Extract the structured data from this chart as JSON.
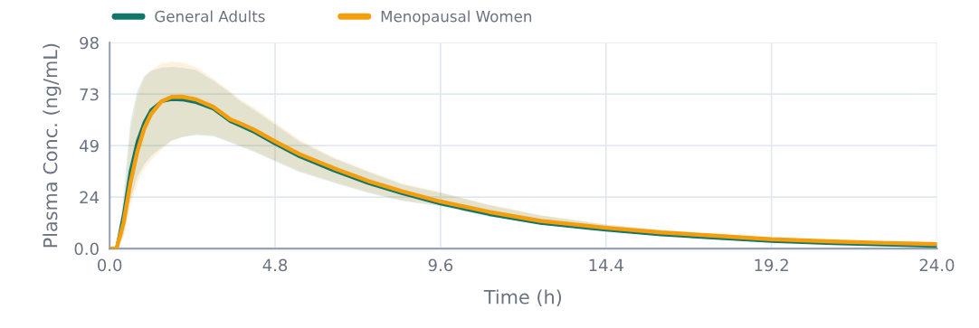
{
  "chart_data": {
    "type": "line",
    "xlabel": "Time (h)",
    "ylabel": "Plasma Conc. (ng/mL)",
    "x": [
      0,
      0.2,
      0.4,
      0.6,
      0.8,
      1.0,
      1.2,
      1.5,
      1.8,
      2.1,
      2.5,
      3,
      3.5,
      3.8,
      4.2,
      4.8,
      5.5,
      6.5,
      7.5,
      8.5,
      9.6,
      11,
      12.5,
      14.4,
      16,
      17.5,
      19.2,
      21,
      22.5,
      24
    ],
    "series": [
      {
        "name": "General Adults",
        "color": "#11756a",
        "values": [
          0,
          0,
          16,
          37,
          51,
          60,
          66,
          70,
          71,
          70.8,
          69.5,
          66.5,
          60.5,
          58.3,
          55.3,
          49.8,
          43.8,
          37.1,
          31.1,
          26.1,
          21.3,
          16.3,
          12.1,
          8.8,
          6.6,
          5.1,
          3.5,
          2.4,
          1.7,
          1.1
        ],
        "upper": [
          0,
          0,
          25,
          60,
          75,
          82,
          84.5,
          86,
          86.5,
          86,
          85,
          80,
          74,
          70,
          66,
          59,
          51,
          43,
          36.5,
          30.5,
          26.5,
          20.7,
          15.8,
          11.4,
          8.8,
          6.9,
          5.1,
          3.8,
          2.9,
          2.3
        ],
        "lower": [
          0,
          0,
          6,
          23,
          34,
          40,
          44,
          48,
          51.5,
          53,
          54,
          53.5,
          50.5,
          48.5,
          46,
          41.5,
          36.5,
          31.3,
          26.5,
          22.6,
          20.2,
          15.2,
          11.6,
          8.8,
          6.7,
          5.3,
          3.9,
          2.9,
          2.3,
          1.8
        ]
      },
      {
        "name": "Menopausal Women",
        "color": "#f59e0b",
        "values": [
          0,
          0,
          12,
          31,
          46,
          57,
          64,
          70,
          72.2,
          72.3,
          71,
          67.5,
          61.5,
          59.5,
          56.5,
          51,
          45,
          38.3,
          32.2,
          27.2,
          22.4,
          17.5,
          13.2,
          9.9,
          7.7,
          6.2,
          4.5,
          3.4,
          2.7,
          2.1
        ],
        "upper": [
          0,
          0,
          20,
          55,
          72,
          81,
          85,
          88,
          89,
          88.5,
          86.5,
          81,
          75,
          71,
          67,
          60,
          52,
          43.5,
          37,
          31,
          26.9,
          21,
          16,
          11.6,
          9,
          7,
          5.2,
          3.9,
          3,
          2.4
        ],
        "lower": [
          0,
          0,
          5,
          20,
          31,
          38,
          42,
          47,
          51,
          53,
          54.5,
          54,
          51,
          49,
          46.5,
          42,
          37,
          31.8,
          26.9,
          23,
          20.6,
          15.5,
          11.8,
          9,
          6.8,
          5.4,
          4,
          3,
          2.4,
          1.9
        ]
      }
    ],
    "xlim": [
      0,
      24
    ],
    "xticks": [
      {
        "value": 0,
        "label": "0.0"
      },
      4.8,
      9.6,
      14.4,
      19.2,
      {
        "value": 24,
        "label": "24.0"
      }
    ],
    "ylim": [
      0,
      98
    ],
    "yticks": [
      {
        "value": 0,
        "label": "0.0"
      },
      {
        "value": 24.5,
        "label": "24"
      },
      49,
      {
        "value": 73.5,
        "label": "73"
      },
      98
    ],
    "grid": true,
    "legend": "top left",
    "marker": "none",
    "line_style": "solid"
  }
}
